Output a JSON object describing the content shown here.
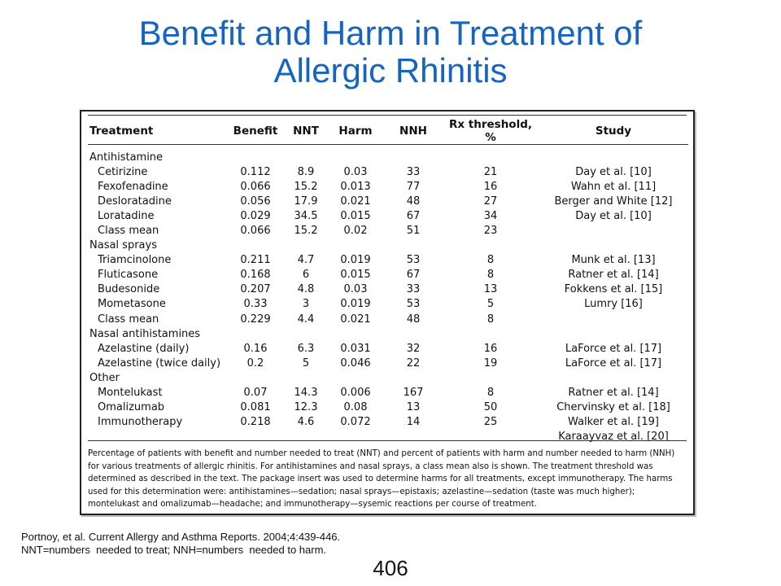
{
  "title": {
    "line1": "Benefit and Harm in Treatment of",
    "line2": "Allergic Rhinitis"
  },
  "table": {
    "headers": [
      "Treatment",
      "Benefit",
      "NNT",
      "Harm",
      "NNH",
      "Rx threshold, %",
      "Study"
    ],
    "rows": [
      {
        "group": true,
        "treatment": "Antihistamine"
      },
      {
        "treatment": "Cetirizine",
        "benefit": "0.112",
        "nnt": "8.9",
        "harm": "0.03",
        "nnh": "33",
        "rx": "21",
        "study": "Day et al. [10]"
      },
      {
        "treatment": "Fexofenadine",
        "benefit": "0.066",
        "nnt": "15.2",
        "harm": "0.013",
        "nnh": "77",
        "rx": "16",
        "study": "Wahn et al. [11]"
      },
      {
        "treatment": "Desloratadine",
        "benefit": "0.056",
        "nnt": "17.9",
        "harm": "0.021",
        "nnh": "48",
        "rx": "27",
        "study": "Berger and White [12]"
      },
      {
        "treatment": "Loratadine",
        "benefit": "0.029",
        "nnt": "34.5",
        "harm": "0.015",
        "nnh": "67",
        "rx": "34",
        "study": "Day et al. [10]"
      },
      {
        "treatment": "Class mean",
        "benefit": "0.066",
        "nnt": "15.2",
        "harm": "0.02",
        "nnh": "51",
        "rx": "23",
        "study": ""
      },
      {
        "group": true,
        "treatment": "Nasal sprays"
      },
      {
        "treatment": "Triamcinolone",
        "benefit": "0.211",
        "nnt": "4.7",
        "harm": "0.019",
        "nnh": "53",
        "rx": "8",
        "study": "Munk et al. [13]"
      },
      {
        "treatment": "Fluticasone",
        "benefit": "0.168",
        "nnt": "6",
        "harm": "0.015",
        "nnh": "67",
        "rx": "8",
        "study": "Ratner et al. [14]"
      },
      {
        "treatment": "Budesonide",
        "benefit": "0.207",
        "nnt": "4.8",
        "harm": "0.03",
        "nnh": "33",
        "rx": "13",
        "study": "Fokkens et al. [15]"
      },
      {
        "treatment": "Mometasone",
        "benefit": "0.33",
        "nnt": "3",
        "harm": "0.019",
        "nnh": "53",
        "rx": "5",
        "study": "Lumry [16]"
      },
      {
        "treatment": "Class mean",
        "benefit": "0.229",
        "nnt": "4.4",
        "harm": "0.021",
        "nnh": "48",
        "rx": "8",
        "study": ""
      },
      {
        "group": true,
        "treatment": "Nasal antihistamines"
      },
      {
        "treatment": "Azelastine (daily)",
        "benefit": "0.16",
        "nnt": "6.3",
        "harm": "0.031",
        "nnh": "32",
        "rx": "16",
        "study": "LaForce et al. [17]"
      },
      {
        "treatment": "Azelastine (twice daily)",
        "benefit": "0.2",
        "nnt": "5",
        "harm": "0.046",
        "nnh": "22",
        "rx": "19",
        "study": "LaForce et al. [17]"
      },
      {
        "group": true,
        "treatment": "Other"
      },
      {
        "treatment": "Montelukast",
        "benefit": "0.07",
        "nnt": "14.3",
        "harm": "0.006",
        "nnh": "167",
        "rx": "8",
        "study": "Ratner et al. [14]"
      },
      {
        "treatment": "Omalizumab",
        "benefit": "0.081",
        "nnt": "12.3",
        "harm": "0.08",
        "nnh": "13",
        "rx": "50",
        "study": "Chervinsky et al. [18]"
      },
      {
        "treatment": "Immunotherapy",
        "benefit": "0.218",
        "nnt": "4.6",
        "harm": "0.072",
        "nnh": "14",
        "rx": "25",
        "study": "Walker et al. [19]"
      },
      {
        "treatment": "",
        "benefit": "",
        "nnt": "",
        "harm": "",
        "nnh": "",
        "rx": "",
        "study": "Karaayvaz et al. [20]"
      }
    ],
    "caption": "Percentage of patients with benefit and number needed to treat (NNT) and percent of patients with harm and number needed to harm (NNH) for various treatments of allergic rhinitis. For antihistamines and nasal sprays, a class mean also is shown. The treatment threshold was determined as described in the text. The package insert was used to determine harms for all treatments, except immunotherapy. The harms used for this determination were: antihistamines—sedation; nasal sprays—epistaxis; azelastine—sedation (taste was much higher); montelukast and omalizumab—headache; and immunotherapy—sysemic reactions per course of treatment."
  },
  "footnote": {
    "line1": "Portnoy, et al. Current Allergy and Asthma Reports. 2004;4:439-446.",
    "line2": "NNT=numbers  needed to treat; NNH=numbers  needed to harm."
  },
  "page_number": "406",
  "colors": {
    "title": "#1565c0"
  }
}
